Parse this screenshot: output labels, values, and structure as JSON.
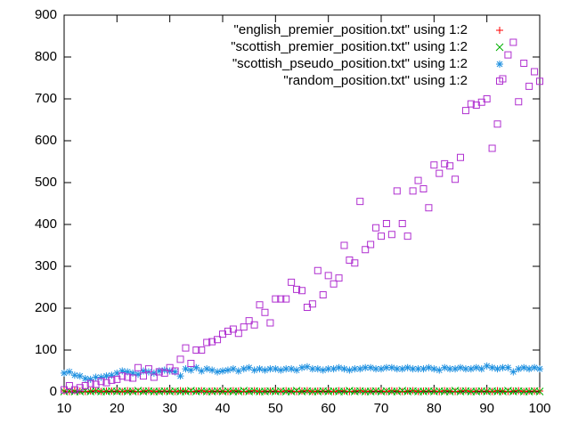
{
  "chart_data": {
    "type": "scatter",
    "x": [
      10,
      11,
      12,
      13,
      14,
      15,
      16,
      17,
      18,
      19,
      20,
      21,
      22,
      23,
      24,
      25,
      26,
      27,
      28,
      29,
      30,
      31,
      32,
      33,
      34,
      35,
      36,
      37,
      38,
      39,
      40,
      41,
      42,
      43,
      44,
      45,
      46,
      47,
      48,
      49,
      50,
      51,
      52,
      53,
      54,
      55,
      56,
      57,
      58,
      59,
      60,
      61,
      62,
      63,
      64,
      65,
      66,
      67,
      68,
      69,
      70,
      71,
      72,
      73,
      74,
      75,
      76,
      77,
      78,
      79,
      80,
      81,
      82,
      83,
      84,
      85,
      86,
      87,
      88,
      89,
      90,
      91,
      92,
      93,
      94,
      95,
      96,
      97,
      98,
      99,
      100
    ],
    "series": [
      {
        "name": "\"english_premier_position.txt\" using 1:2",
        "color": "#ff0000",
        "marker": "plus",
        "values": [
          2,
          1,
          3,
          2,
          1,
          2,
          3,
          1,
          2,
          2,
          2,
          1,
          3,
          2,
          1,
          2,
          3,
          1,
          2,
          2,
          2,
          1,
          3,
          2,
          1,
          2,
          3,
          1,
          2,
          2,
          2,
          1,
          3,
          2,
          1,
          2,
          3,
          1,
          2,
          2,
          2,
          1,
          3,
          2,
          1,
          2,
          3,
          1,
          2,
          2,
          2,
          1,
          3,
          2,
          1,
          2,
          3,
          1,
          2,
          2,
          2,
          1,
          3,
          2,
          1,
          2,
          3,
          1,
          2,
          2,
          2,
          1,
          3,
          2,
          1,
          2,
          3,
          1,
          2,
          2,
          2,
          1,
          3,
          2,
          1,
          2,
          3,
          1,
          2,
          2,
          2
        ]
      },
      {
        "name": "\"scottish_premier_position.txt\" using 1:2",
        "color": "#00b000",
        "marker": "cross",
        "values": [
          1,
          2,
          1,
          1,
          3,
          1,
          2,
          1,
          1,
          2,
          1,
          2,
          1,
          1,
          3,
          1,
          2,
          1,
          1,
          2,
          1,
          2,
          1,
          1,
          3,
          1,
          2,
          1,
          1,
          2,
          1,
          2,
          1,
          1,
          3,
          1,
          2,
          1,
          1,
          2,
          1,
          2,
          1,
          1,
          3,
          1,
          2,
          1,
          1,
          2,
          1,
          2,
          1,
          1,
          3,
          1,
          2,
          1,
          1,
          2,
          1,
          2,
          1,
          1,
          3,
          1,
          2,
          1,
          1,
          2,
          1,
          2,
          1,
          1,
          3,
          1,
          2,
          1,
          1,
          2,
          1,
          2,
          1,
          1,
          3,
          1,
          2,
          1,
          1,
          2,
          1
        ]
      },
      {
        "name": "\"scottish_pseudo_position.txt\" using 1:2",
        "color": "#1e90e0",
        "marker": "star",
        "values": [
          45,
          48,
          40,
          38,
          32,
          30,
          35,
          35,
          38,
          40,
          45,
          50,
          48,
          45,
          42,
          50,
          48,
          45,
          50,
          52,
          50,
          48,
          38,
          55,
          52,
          58,
          50,
          55,
          52,
          48,
          50,
          52,
          55,
          50,
          55,
          58,
          52,
          55,
          52,
          55,
          55,
          52,
          55,
          55,
          52,
          58,
          60,
          55,
          55,
          52,
          55,
          55,
          58,
          55,
          52,
          55,
          55,
          58,
          58,
          55,
          55,
          58,
          58,
          55,
          55,
          58,
          55,
          55,
          55,
          58,
          55,
          52,
          58,
          55,
          55,
          58,
          55,
          55,
          58,
          55,
          62,
          58,
          55,
          58,
          58,
          48,
          55,
          58,
          55,
          58,
          55
        ]
      },
      {
        "name": "\"random_position.txt\" using 1:2",
        "color": "#b030d0",
        "marker": "box",
        "values": [
          5,
          15,
          5,
          10,
          15,
          20,
          18,
          25,
          22,
          28,
          30,
          38,
          35,
          33,
          58,
          38,
          55,
          35,
          48,
          45,
          58,
          50,
          78,
          105,
          68,
          100,
          100,
          118,
          120,
          125,
          138,
          145,
          150,
          140,
          155,
          170,
          160,
          208,
          190,
          165,
          222,
          222,
          222,
          262,
          245,
          242,
          202,
          210,
          290,
          232,
          278,
          258,
          272,
          350,
          315,
          308,
          455,
          340,
          352,
          392,
          372,
          402,
          376,
          480,
          402,
          372,
          480,
          505,
          485,
          440,
          542,
          522,
          545,
          540,
          508,
          560,
          672,
          688,
          685,
          692,
          700,
          582,
          640,
          748,
          805,
          835,
          693,
          785,
          730,
          765,
          742
        ]
      }
    ],
    "xlim": [
      10,
      100
    ],
    "xticks": [
      10,
      20,
      30,
      40,
      50,
      60,
      70,
      80,
      90,
      100
    ],
    "ylim": [
      0,
      900
    ],
    "yticks": [
      0,
      100,
      200,
      300,
      400,
      500,
      600,
      700,
      800,
      900
    ],
    "legend": "top-right"
  }
}
